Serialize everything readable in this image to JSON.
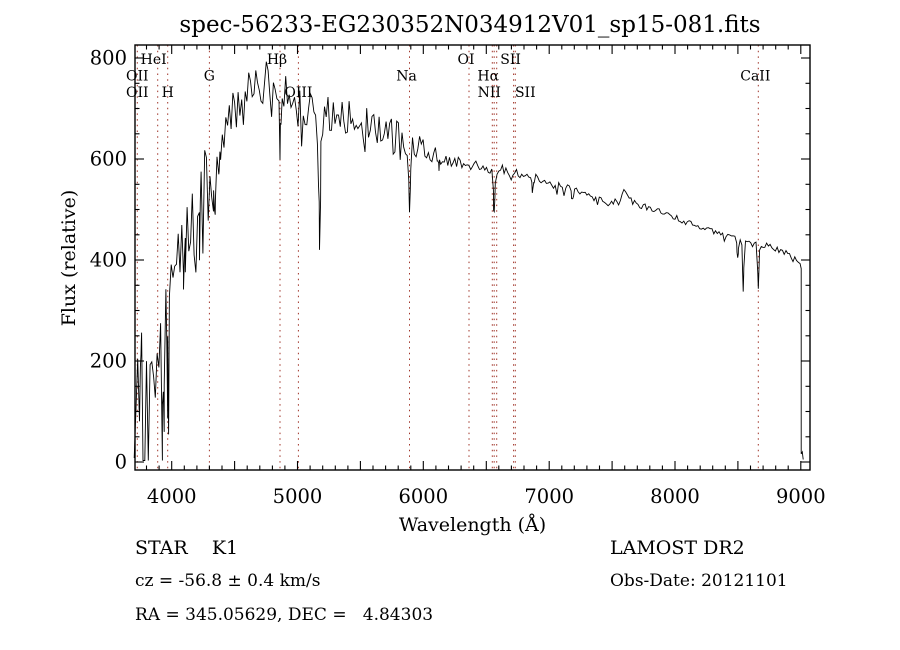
{
  "title": "spec-56233-EG230352N034912V01_sp15-081.fits",
  "footer": {
    "class_line": "STAR    K1",
    "cz_line": "cz = -56.8 ± 0.4 km/s",
    "radec_line": "RA = 345.05629, DEC =   4.84303",
    "survey_line": "LAMOST DR2",
    "obsdate_line": "Obs-Date: 20121101"
  },
  "chart_data": {
    "type": "line",
    "title": "spec-56233-EG230352N034912V01_sp15-081.fits",
    "xlabel": "Wavelength (Å)",
    "ylabel": "Flux (relative)",
    "xlim": [
      3702,
      9073
    ],
    "ylim": [
      0,
      800
    ],
    "grid": false,
    "legend": "none",
    "x_major_ticks": [
      4000,
      5000,
      6000,
      7000,
      8000,
      9000
    ],
    "x_tick_labels": [
      "4000",
      "5000",
      "6000",
      "7000",
      "8000",
      "9000"
    ],
    "x_minor_step": 100,
    "y_major_ticks": [
      0,
      200,
      400,
      600,
      800
    ],
    "y_tick_labels": [
      "0",
      "200",
      "400",
      "600",
      "800"
    ],
    "y_minor_step": 50,
    "line_color": "#000000",
    "marker_color": "#a03428",
    "marker_wavelengths": [
      3727,
      3889,
      3968,
      4300,
      4861,
      5007,
      5890,
      6363,
      6548,
      6563,
      6583,
      6717,
      6731,
      8662
    ],
    "marker_labels": [
      {
        "text": "HeI",
        "wavelength": 3889,
        "row": 1,
        "dx": -4
      },
      {
        "text": "Hβ",
        "wavelength": 4861,
        "row": 1,
        "dx": -3
      },
      {
        "text": "OI",
        "wavelength": 6363,
        "row": 1,
        "dx": -3
      },
      {
        "text": "SII",
        "wavelength": 6717,
        "row": 1,
        "dx": -3
      },
      {
        "text": "OII",
        "wavelength": 3727,
        "row": 2,
        "dx": 0
      },
      {
        "text": "G",
        "wavelength": 4300,
        "row": 2,
        "dx": 0
      },
      {
        "text": "Na",
        "wavelength": 5890,
        "row": 2,
        "dx": -3
      },
      {
        "text": "Hα",
        "wavelength": 6563,
        "row": 2,
        "dx": -6
      },
      {
        "text": "CaII",
        "wavelength": 8662,
        "row": 2,
        "dx": -3
      },
      {
        "text": "OII",
        "wavelength": 3727,
        "row": 3,
        "dx": 0
      },
      {
        "text": "H",
        "wavelength": 3968,
        "row": 3,
        "dx": 0
      },
      {
        "text": "OIII",
        "wavelength": 5007,
        "row": 3,
        "dx": 0
      },
      {
        "text": "NII",
        "wavelength": 6548,
        "row": 3,
        "dx": -3
      },
      {
        "text": "SII",
        "wavelength": 6731,
        "row": 3,
        "dx": 10
      }
    ],
    "continuum": [
      [
        3702,
        5
      ],
      [
        3710,
        90
      ],
      [
        3725,
        175
      ],
      [
        3740,
        225
      ],
      [
        3755,
        150
      ],
      [
        3770,
        230
      ],
      [
        3790,
        235
      ],
      [
        3810,
        195
      ],
      [
        3830,
        175
      ],
      [
        3850,
        235
      ],
      [
        3870,
        265
      ],
      [
        3890,
        245
      ],
      [
        3910,
        275
      ],
      [
        3930,
        240
      ],
      [
        3950,
        295
      ],
      [
        3970,
        295
      ],
      [
        4000,
        375
      ],
      [
        4040,
        420
      ],
      [
        4080,
        430
      ],
      [
        4120,
        460
      ],
      [
        4160,
        500
      ],
      [
        4200,
        540
      ],
      [
        4240,
        565
      ],
      [
        4280,
        590
      ],
      [
        4310,
        580
      ],
      [
        4340,
        600
      ],
      [
        4380,
        645
      ],
      [
        4420,
        655
      ],
      [
        4460,
        670
      ],
      [
        4500,
        685
      ],
      [
        4550,
        705
      ],
      [
        4600,
        725
      ],
      [
        4650,
        735
      ],
      [
        4700,
        745
      ],
      [
        4760,
        750
      ],
      [
        4820,
        745
      ],
      [
        4861,
        730
      ],
      [
        4900,
        735
      ],
      [
        4950,
        725
      ],
      [
        5000,
        715
      ],
      [
        5060,
        705
      ],
      [
        5120,
        700
      ],
      [
        5175,
        665
      ],
      [
        5220,
        690
      ],
      [
        5280,
        690
      ],
      [
        5340,
        688
      ],
      [
        5400,
        684
      ],
      [
        5460,
        680
      ],
      [
        5520,
        674
      ],
      [
        5580,
        668
      ],
      [
        5640,
        662
      ],
      [
        5700,
        656
      ],
      [
        5760,
        650
      ],
      [
        5820,
        645
      ],
      [
        5870,
        635
      ],
      [
        5890,
        620
      ],
      [
        5920,
        628
      ],
      [
        5960,
        625
      ],
      [
        6000,
        620
      ],
      [
        6060,
        612
      ],
      [
        6120,
        605
      ],
      [
        6180,
        600
      ],
      [
        6240,
        596
      ],
      [
        6300,
        592
      ],
      [
        6360,
        590
      ],
      [
        6420,
        588
      ],
      [
        6480,
        586
      ],
      [
        6540,
        580
      ],
      [
        6600,
        580
      ],
      [
        6660,
        578
      ],
      [
        6720,
        574
      ],
      [
        6780,
        570
      ],
      [
        6840,
        566
      ],
      [
        6900,
        562
      ],
      [
        6960,
        558
      ],
      [
        7020,
        553
      ],
      [
        7080,
        548
      ],
      [
        7140,
        543
      ],
      [
        7200,
        538
      ],
      [
        7260,
        532
      ],
      [
        7320,
        527
      ],
      [
        7380,
        522
      ],
      [
        7440,
        518
      ],
      [
        7500,
        515
      ],
      [
        7560,
        514
      ],
      [
        7600,
        540
      ],
      [
        7620,
        528
      ],
      [
        7660,
        515
      ],
      [
        7720,
        508
      ],
      [
        7780,
        503
      ],
      [
        7840,
        498
      ],
      [
        7900,
        493
      ],
      [
        7960,
        488
      ],
      [
        8020,
        482
      ],
      [
        8080,
        476
      ],
      [
        8140,
        470
      ],
      [
        8200,
        464
      ],
      [
        8260,
        459
      ],
      [
        8320,
        455
      ],
      [
        8380,
        452
      ],
      [
        8440,
        449
      ],
      [
        8500,
        444
      ],
      [
        8560,
        438
      ],
      [
        8620,
        436
      ],
      [
        8680,
        432
      ],
      [
        8740,
        428
      ],
      [
        8800,
        424
      ],
      [
        8860,
        418
      ],
      [
        8920,
        408
      ],
      [
        8970,
        395
      ],
      [
        9000,
        385
      ]
    ],
    "noise": [
      [
        3702,
        150
      ],
      [
        3750,
        155
      ],
      [
        3800,
        140
      ],
      [
        3850,
        130
      ],
      [
        3900,
        120
      ],
      [
        3950,
        115
      ],
      [
        4000,
        95
      ],
      [
        4100,
        85
      ],
      [
        4200,
        80
      ],
      [
        4300,
        75
      ],
      [
        4400,
        68
      ],
      [
        4500,
        62
      ],
      [
        4600,
        58
      ],
      [
        4700,
        55
      ],
      [
        4800,
        52
      ],
      [
        4900,
        50
      ],
      [
        5000,
        48
      ],
      [
        5200,
        45
      ],
      [
        5400,
        42
      ],
      [
        5600,
        38
      ],
      [
        5800,
        35
      ],
      [
        5900,
        32
      ],
      [
        6000,
        24
      ],
      [
        6200,
        17
      ],
      [
        6400,
        14
      ],
      [
        6600,
        12
      ],
      [
        6800,
        10
      ],
      [
        7000,
        9
      ],
      [
        7300,
        8
      ],
      [
        7600,
        8
      ],
      [
        8000,
        7
      ],
      [
        8400,
        7
      ],
      [
        8800,
        8
      ],
      [
        9000,
        9
      ]
    ],
    "features": [
      [
        3756,
        -160,
        5
      ],
      [
        3933,
        130,
        7
      ],
      [
        3968,
        120,
        7
      ],
      [
        4101,
        95,
        7
      ],
      [
        4227,
        60,
        6
      ],
      [
        4340,
        85,
        7
      ],
      [
        4383,
        50,
        6
      ],
      [
        4861,
        75,
        8
      ],
      [
        5175,
        190,
        8
      ],
      [
        5890,
        100,
        6
      ],
      [
        6122,
        30,
        6
      ],
      [
        6563,
        80,
        6
      ],
      [
        6870,
        28,
        8
      ],
      [
        7186,
        22,
        8
      ],
      [
        8498,
        45,
        5
      ],
      [
        8542,
        100,
        5
      ],
      [
        8662,
        85,
        5
      ]
    ],
    "spike_prob": [
      0.22,
      0.13,
      0.06
    ],
    "deep_spike_prob": 0.1,
    "cutoff": {
      "wavelength": 9003,
      "tail_end": 9019
    }
  }
}
